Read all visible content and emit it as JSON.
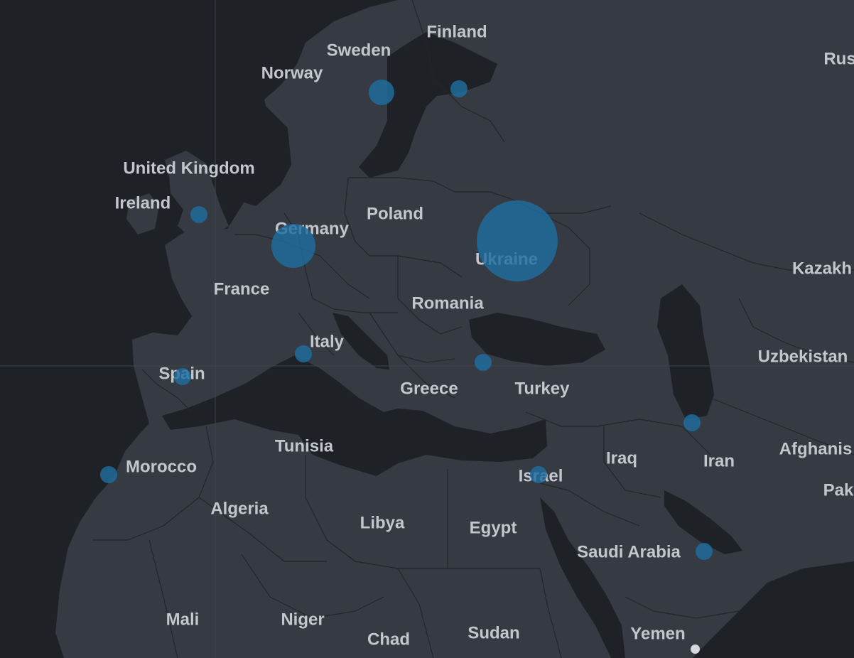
{
  "map": {
    "theme_colors": {
      "water": "#1e2126",
      "land": "#353a43",
      "border": "#22262b",
      "label": "#c3c7cd",
      "bubble": "#1f6e9f"
    },
    "labels": [
      {
        "id": "finland",
        "text": "Finland"
      },
      {
        "id": "sweden",
        "text": "Sweden"
      },
      {
        "id": "norway",
        "text": "Norway"
      },
      {
        "id": "russia",
        "text": "Rus"
      },
      {
        "id": "united-kingdom",
        "text": "United Kingdom"
      },
      {
        "id": "ireland",
        "text": "Ireland"
      },
      {
        "id": "poland",
        "text": "Poland"
      },
      {
        "id": "germany",
        "text": "Germany"
      },
      {
        "id": "ukraine",
        "text": "Ukraine"
      },
      {
        "id": "kazakhstan",
        "text": "Kazakh"
      },
      {
        "id": "france",
        "text": "France"
      },
      {
        "id": "romania",
        "text": "Romania"
      },
      {
        "id": "italy",
        "text": "Italy"
      },
      {
        "id": "spain",
        "text": "Spain"
      },
      {
        "id": "uzbekistan",
        "text": "Uzbekistan"
      },
      {
        "id": "greece",
        "text": "Greece"
      },
      {
        "id": "turkey",
        "text": "Turkey"
      },
      {
        "id": "tunisia",
        "text": "Tunisia"
      },
      {
        "id": "morocco",
        "text": "Morocco"
      },
      {
        "id": "iraq",
        "text": "Iraq"
      },
      {
        "id": "iran",
        "text": "Iran"
      },
      {
        "id": "afghanistan",
        "text": "Afghanis"
      },
      {
        "id": "israel",
        "text": "Israel"
      },
      {
        "id": "pakistan",
        "text": "Pak"
      },
      {
        "id": "algeria",
        "text": "Algeria"
      },
      {
        "id": "libya",
        "text": "Libya"
      },
      {
        "id": "egypt",
        "text": "Egypt"
      },
      {
        "id": "saudi-arabia",
        "text": "Saudi Arabia"
      },
      {
        "id": "mali",
        "text": "Mali"
      },
      {
        "id": "niger",
        "text": "Niger"
      },
      {
        "id": "chad",
        "text": "Chad"
      },
      {
        "id": "sudan",
        "text": "Sudan"
      },
      {
        "id": "yemen",
        "text": "Yemen"
      }
    ],
    "bubbles": [
      {
        "id": "ukraine",
        "size": "largest"
      },
      {
        "id": "germany",
        "size": "large"
      },
      {
        "id": "sweden",
        "size": "medium"
      },
      {
        "id": "finland",
        "size": "small"
      },
      {
        "id": "united-kingdom",
        "size": "small"
      },
      {
        "id": "italy",
        "size": "small"
      },
      {
        "id": "spain",
        "size": "small"
      },
      {
        "id": "turkey",
        "size": "small"
      },
      {
        "id": "morocco",
        "size": "small"
      },
      {
        "id": "israel",
        "size": "small"
      },
      {
        "id": "iran",
        "size": "small"
      },
      {
        "id": "uae",
        "size": "small"
      }
    ]
  },
  "pager": {
    "dot_icon": "page-dot-icon"
  }
}
